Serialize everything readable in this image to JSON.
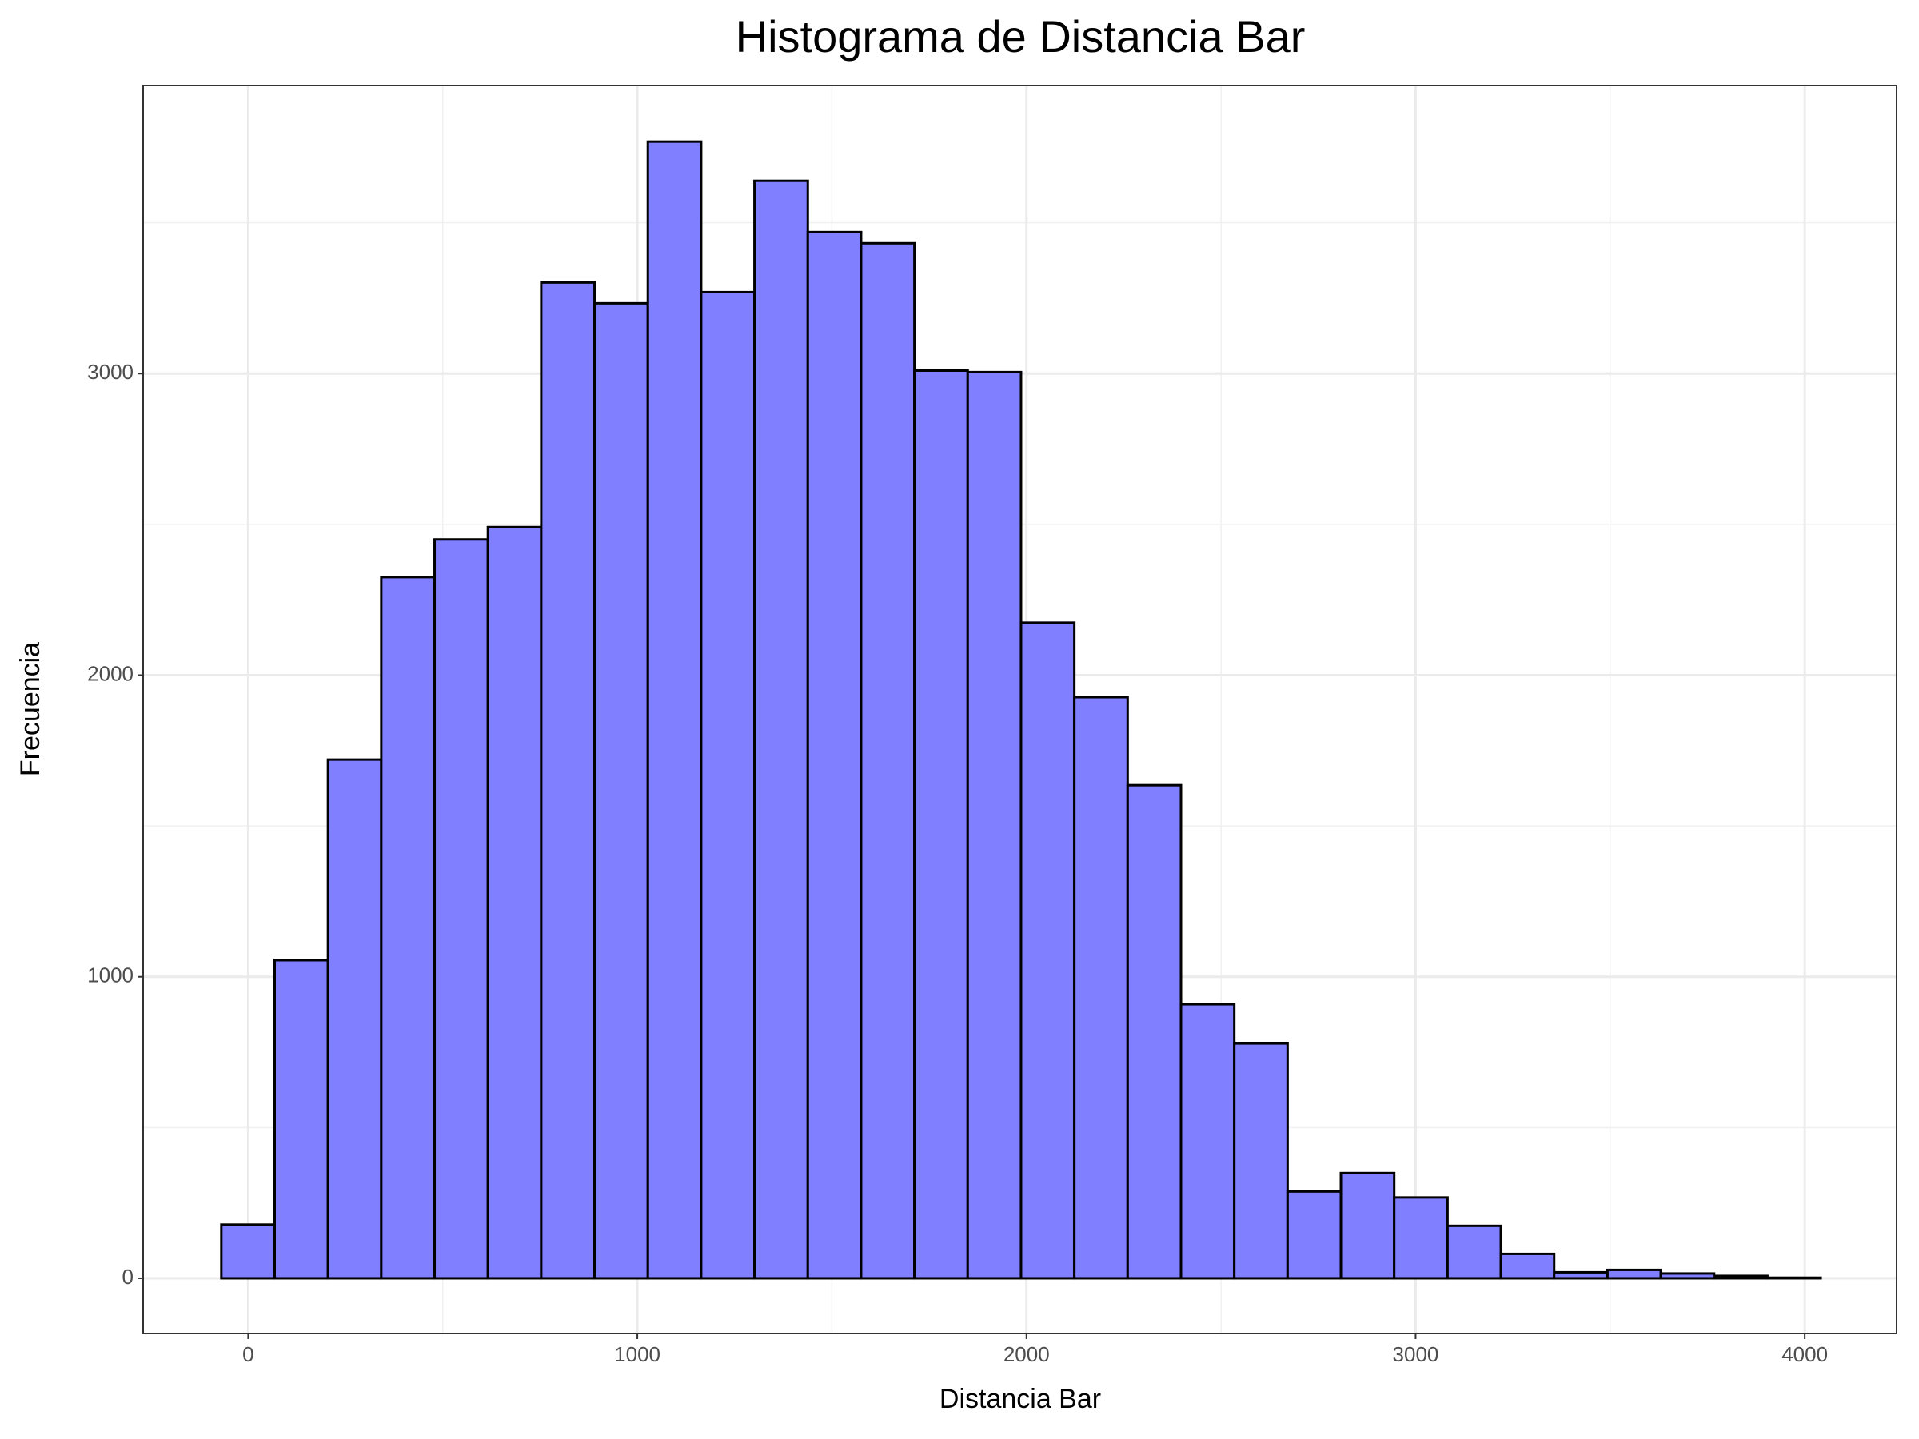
{
  "chart_data": {
    "type": "histogram",
    "title": "Histograma de Distancia Bar",
    "x_label": "Distancia Bar",
    "y_label": "Frecuencia",
    "bins": [
      -69,
      68,
      205,
      342,
      479,
      616,
      753,
      890,
      1027,
      1164,
      1301,
      1438,
      1575,
      1712,
      1849,
      1986,
      2123,
      2260,
      2397,
      2534,
      2671,
      2808,
      2945,
      3082,
      3219,
      3356,
      3493,
      3630,
      3767,
      3904,
      4041
    ],
    "values": [
      178,
      1055,
      1720,
      2325,
      2450,
      2491,
      3302,
      3233,
      3769,
      3270,
      3639,
      3469,
      3432,
      3010,
      3005,
      2174,
      1927,
      1635,
      909,
      779,
      288,
      349,
      268,
      174,
      81,
      20,
      28,
      16,
      8,
      2
    ],
    "color": "#7f7fff",
    "edge_color": "#000000",
    "xlim": [
      -270,
      4236
    ],
    "xticks": [
      0,
      1000,
      2000,
      3000,
      4000
    ],
    "ylim": [
      -183,
      3955
    ],
    "yticks": [
      0,
      1000,
      2000,
      3000
    ],
    "grid": true
  }
}
